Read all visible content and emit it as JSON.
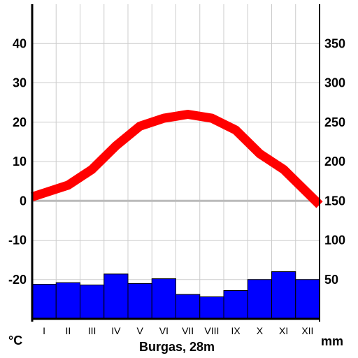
{
  "chart_data": {
    "type": "climate-diagram",
    "title": "Burgas, 28m",
    "categories": [
      "I",
      "II",
      "III",
      "IV",
      "V",
      "VI",
      "VII",
      "VIII",
      "IX",
      "X",
      "XI",
      "XII"
    ],
    "temperature": {
      "unit": "°C",
      "values": [
        2,
        4,
        8,
        14,
        19,
        21,
        22,
        21,
        18,
        12,
        8,
        2
      ],
      "ylim": [
        -30,
        50
      ],
      "ticks": [
        -20,
        -10,
        0,
        10,
        20,
        30,
        40
      ],
      "color": "#ff0000"
    },
    "precipitation": {
      "unit": "mm",
      "values": [
        44,
        46,
        43,
        57,
        45,
        51,
        31,
        28,
        36,
        50,
        60,
        50
      ],
      "ylim": [
        0,
        400
      ],
      "ticks": [
        50,
        100,
        150,
        200,
        250,
        300,
        350
      ],
      "color": "#0000ff"
    },
    "grid": true
  }
}
